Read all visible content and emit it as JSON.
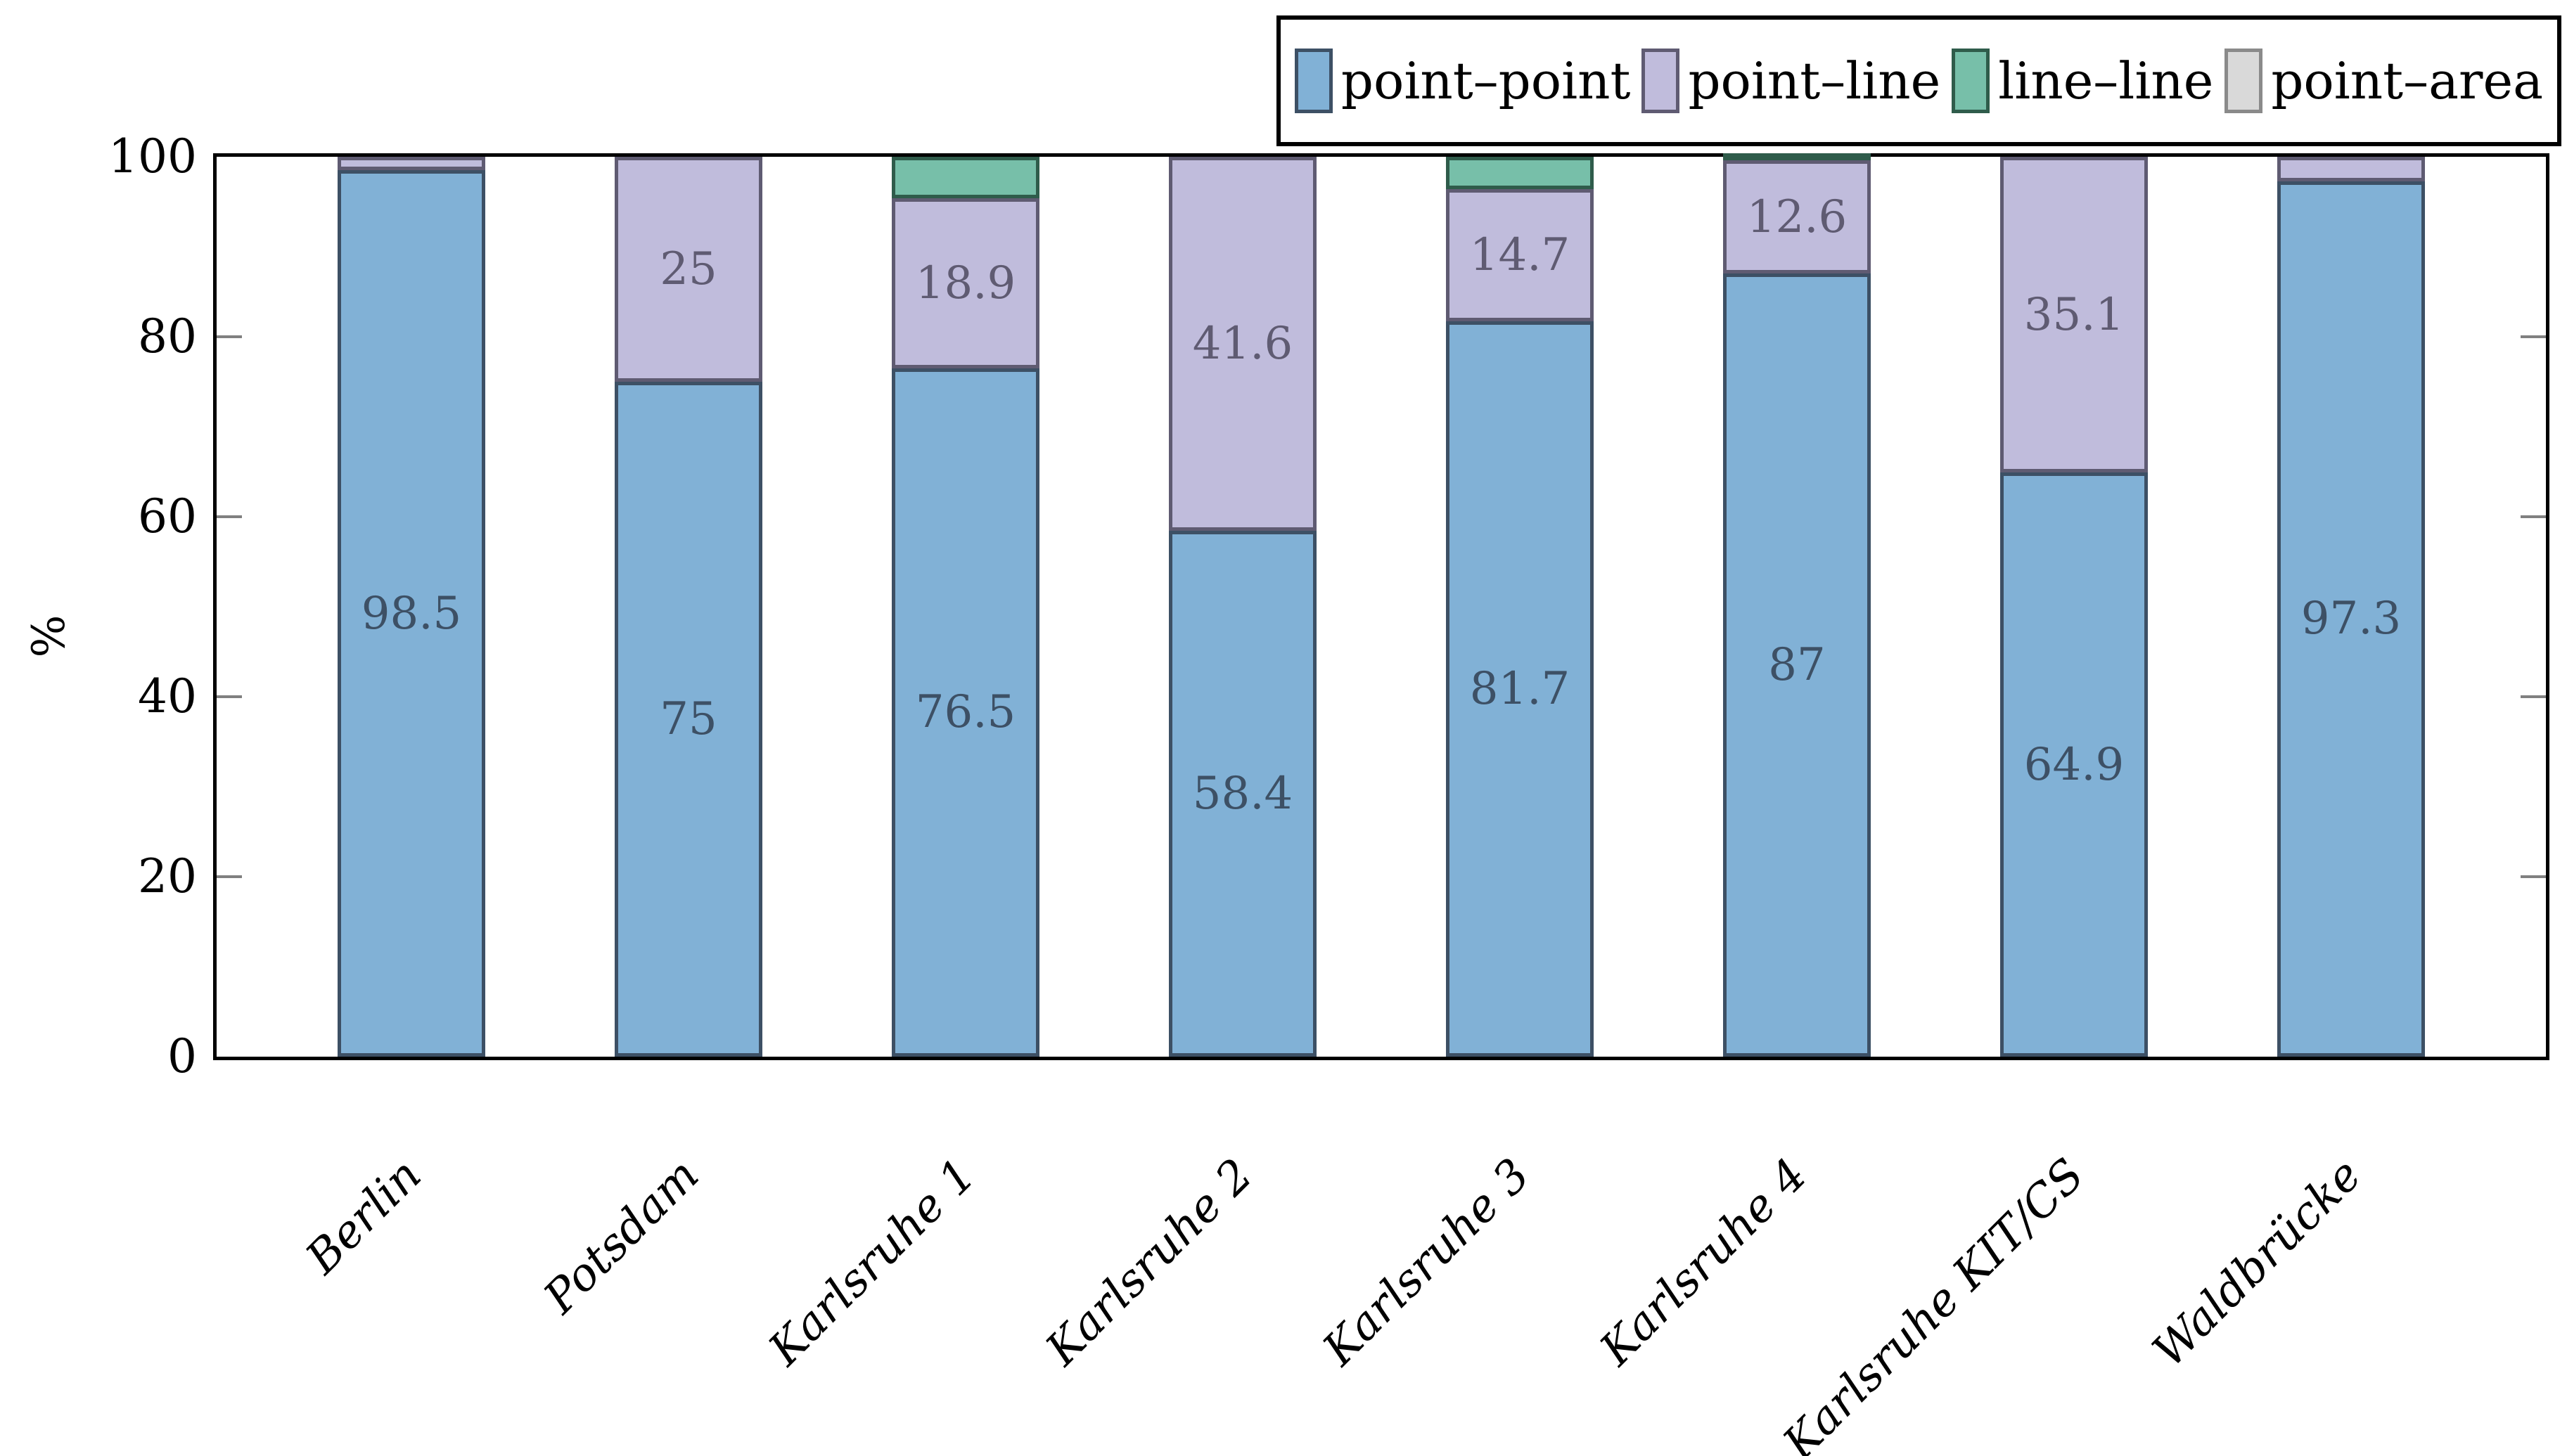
{
  "chart_data": {
    "type": "bar",
    "stacked": true,
    "orientation": "vertical",
    "title": "",
    "xlabel": "",
    "ylabel": "%",
    "ylim": [
      0,
      100
    ],
    "yticks": [
      0,
      20,
      40,
      60,
      80,
      100
    ],
    "grid": false,
    "legend_position": "top-right",
    "categories": [
      "Berlin",
      "Potsdam",
      "Karlsruhe 1",
      "Karlsruhe 2",
      "Karlsruhe 3",
      "Karlsruhe 4",
      "Karlsruhe KIT/CS",
      "Waldbrücke"
    ],
    "series": [
      {
        "name": "point–point",
        "fill": "#81b1d6",
        "border": "#3d5065",
        "label_color": "#3d5065",
        "values": [
          98.5,
          75,
          76.5,
          58.4,
          81.7,
          87,
          64.9,
          97.3
        ]
      },
      {
        "name": "point–line",
        "fill": "#c0bcdc",
        "border": "#5f5b72",
        "label_color": "#5f5b72",
        "values": [
          1.5,
          25,
          18.9,
          41.6,
          14.7,
          12.6,
          35.1,
          2.7
        ]
      },
      {
        "name": "line–line",
        "fill": "#77bfa9",
        "border": "#2f5c4b",
        "label_color": "#2f5c4b",
        "values": [
          0,
          0,
          4.6,
          0,
          3.6,
          0.4,
          0,
          0
        ]
      },
      {
        "name": "point–area",
        "fill": "#d9d9d9",
        "border": "#8a8a8a",
        "label_color": "#8a8a8a",
        "values": [
          0,
          0,
          0,
          0,
          0,
          0,
          0,
          0
        ]
      }
    ],
    "displayed_value_labels": [
      "98.5",
      "75",
      "76.5",
      "58.4",
      "81.7",
      "87",
      "64.9",
      "97.3",
      "25",
      "18.9",
      "41.6",
      "14.7",
      "12.6",
      "35.1"
    ],
    "value_label_min": 10,
    "axis_color": "#000000",
    "tick_color": "#808080"
  }
}
